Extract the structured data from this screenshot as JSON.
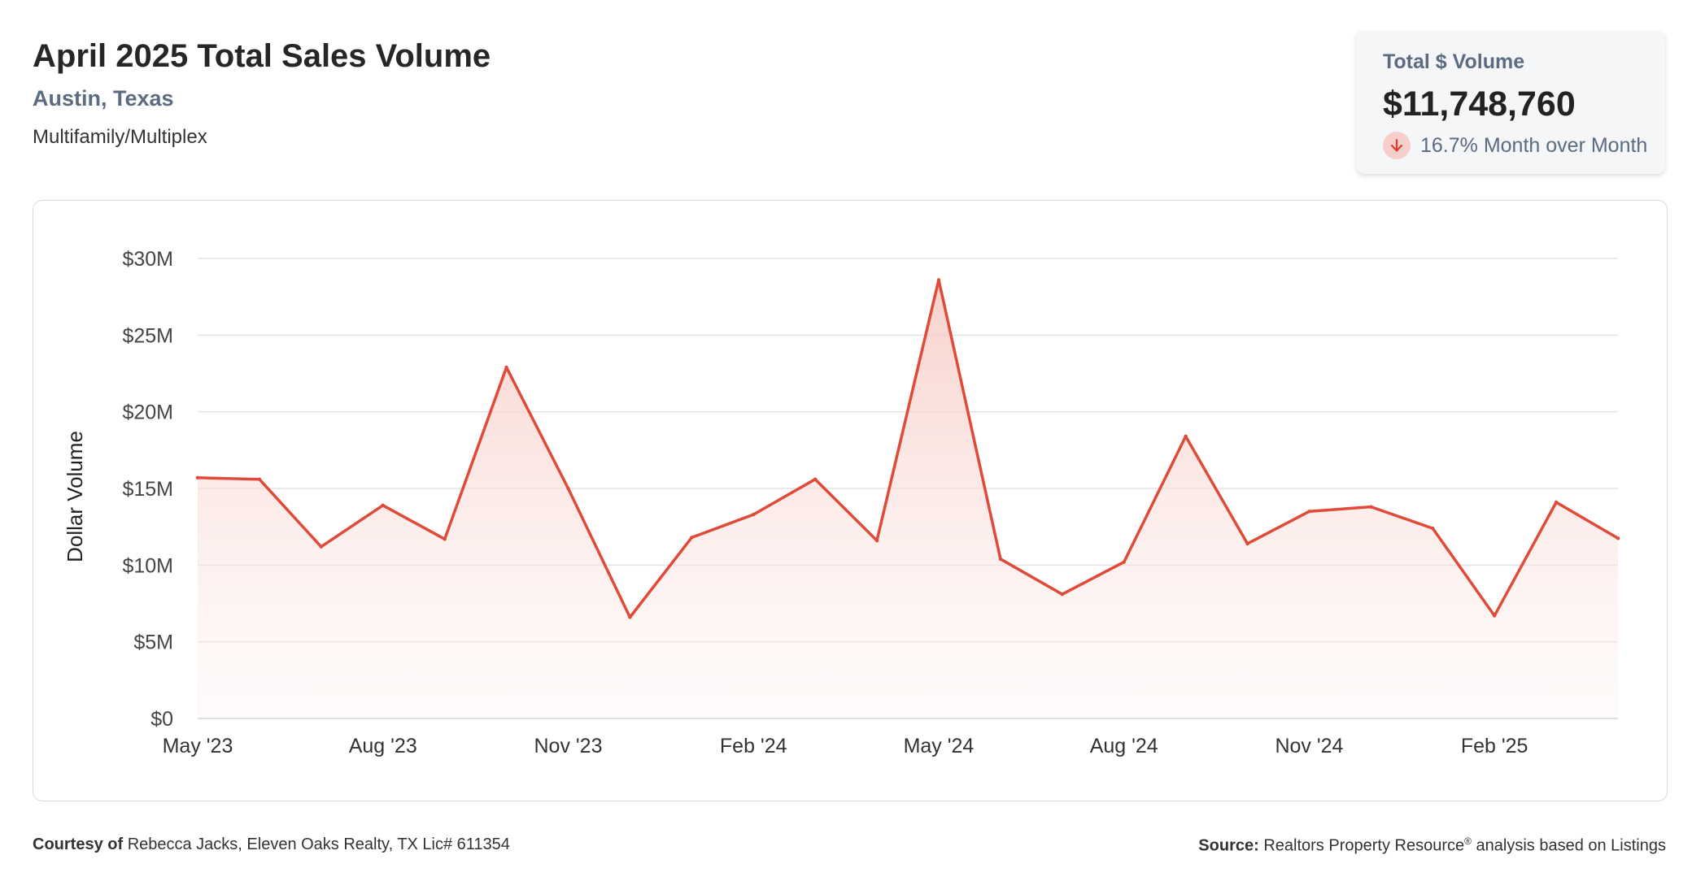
{
  "header": {
    "title": "April 2025 Total Sales Volume",
    "location": "Austin, Texas",
    "property_type": "Multifamily/Multiplex"
  },
  "stat": {
    "label": "Total $ Volume",
    "value": "$11,748,760",
    "change_text": "16.7% Month over Month",
    "direction_icon": "arrow-down-icon"
  },
  "footer": {
    "courtesy_label": "Courtesy of",
    "courtesy_text": "Rebecca Jacks, Eleven Oaks Realty, TX Lic# 611354",
    "source_label": "Source:",
    "source_text_1": "Realtors Property Resource",
    "source_sup": "®",
    "source_text_2": "analysis based on Listings"
  },
  "colors": {
    "line": "#e04a38",
    "fill": "#fbe2de",
    "grid": "#e3e3e3",
    "muted": "#5b6b82"
  },
  "chart_data": {
    "type": "area",
    "ylabel": "Dollar Volume",
    "xlabel": "",
    "ylim": [
      0,
      30000000
    ],
    "grid": true,
    "y_ticks": [
      {
        "value": 0,
        "label": "$0"
      },
      {
        "value": 5000000,
        "label": "$5M"
      },
      {
        "value": 10000000,
        "label": "$10M"
      },
      {
        "value": 15000000,
        "label": "$15M"
      },
      {
        "value": 20000000,
        "label": "$20M"
      },
      {
        "value": 25000000,
        "label": "$25M"
      },
      {
        "value": 30000000,
        "label": "$30M"
      }
    ],
    "x_ticks": [
      {
        "index": 0,
        "label": "May '23"
      },
      {
        "index": 3,
        "label": "Aug '23"
      },
      {
        "index": 6,
        "label": "Nov '23"
      },
      {
        "index": 9,
        "label": "Feb '24"
      },
      {
        "index": 12,
        "label": "May '24"
      },
      {
        "index": 15,
        "label": "Aug '24"
      },
      {
        "index": 18,
        "label": "Nov '24"
      },
      {
        "index": 21,
        "label": "Feb '25"
      }
    ],
    "x": [
      "May '23",
      "Jun '23",
      "Jul '23",
      "Aug '23",
      "Sep '23",
      "Oct '23",
      "Nov '23",
      "Dec '23",
      "Jan '24",
      "Feb '24",
      "Mar '24",
      "Apr '24",
      "May '24",
      "Jun '24",
      "Jul '24",
      "Aug '24",
      "Sep '24",
      "Oct '24",
      "Nov '24",
      "Dec '24",
      "Jan '25",
      "Feb '25",
      "Mar '25",
      "Apr '25"
    ],
    "values": [
      15700000,
      15600000,
      11200000,
      13900000,
      11700000,
      22900000,
      15000000,
      6600000,
      11800000,
      13300000,
      15600000,
      11600000,
      28600000,
      10400000,
      8100000,
      10200000,
      18400000,
      11400000,
      13500000,
      13800000,
      12400000,
      6700000,
      14100000,
      11750000
    ]
  }
}
